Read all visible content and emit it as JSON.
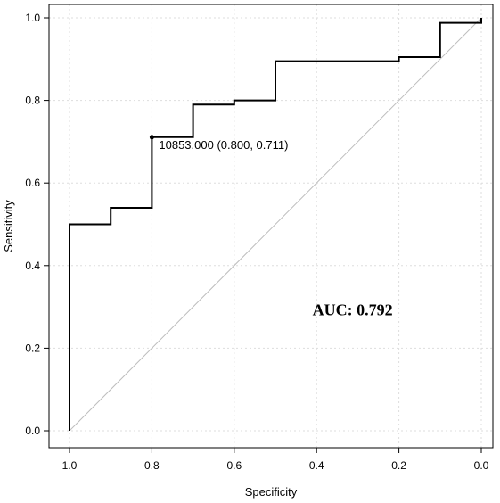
{
  "chart_data": {
    "type": "line",
    "title": "",
    "xlabel": "Specificity",
    "ylabel": "Sensitivity",
    "xlim": [
      1.0,
      0.0
    ],
    "ylim": [
      0.0,
      1.0
    ],
    "x_reversed": true,
    "grid": true,
    "x_ticks": [
      "1.0",
      "0.8",
      "0.6",
      "0.4",
      "0.2",
      "0.0"
    ],
    "y_ticks": [
      "0.0",
      "0.2",
      "0.4",
      "0.6",
      "0.8",
      "1.0"
    ],
    "series": [
      {
        "specificity": [
          1.0,
          1.0,
          0.9,
          0.9,
          0.8,
          0.8,
          0.7,
          0.7,
          0.6,
          0.6,
          0.5,
          0.5,
          0.2,
          0.2,
          0.1,
          0.1,
          0.0,
          0.0
        ],
        "sensitivity": [
          0.0,
          0.5,
          0.5,
          0.54,
          0.54,
          0.711,
          0.711,
          0.79,
          0.79,
          0.8,
          0.8,
          0.895,
          0.895,
          0.905,
          0.905,
          0.988,
          0.988,
          1.0
        ],
        "color": "#000000"
      }
    ],
    "reference_line": {
      "from": [
        1.0,
        0.0
      ],
      "to": [
        0.0,
        1.0
      ],
      "color": "#bdbdbd"
    },
    "best_threshold": {
      "specificity": 0.8,
      "sensitivity": 0.711,
      "label": "10853.000 (0.800, 0.711)"
    },
    "annotation": {
      "text": "AUC: 0.792",
      "specificity": 0.41,
      "sensitivity": 0.28
    }
  }
}
